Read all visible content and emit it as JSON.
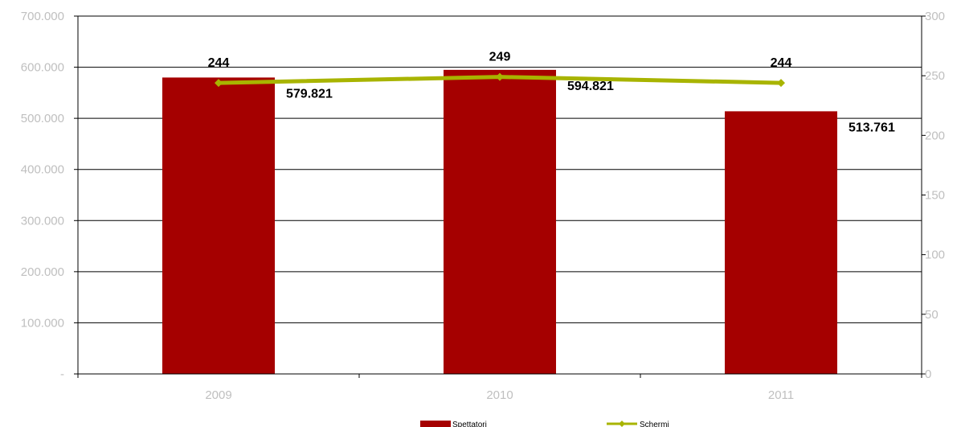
{
  "chart_data": {
    "type": "bar",
    "categories": [
      "2009",
      "2010",
      "2011"
    ],
    "series": [
      {
        "name": "Spettatori",
        "kind": "bar",
        "axis": "left",
        "color": "#a50000",
        "values": [
          579821,
          594821,
          513761
        ],
        "labels": [
          "579.821",
          "594.821",
          "513.761"
        ]
      },
      {
        "name": "Schermi",
        "kind": "line",
        "axis": "right",
        "color": "#a8b400",
        "values": [
          244,
          249,
          244
        ],
        "labels": [
          "244",
          "249",
          "244"
        ]
      }
    ],
    "y_left": {
      "min": 0,
      "max": 700000,
      "ticks": [
        "-",
        "100.000",
        "200.000",
        "300.000",
        "400.000",
        "500.000",
        "600.000",
        "700.000"
      ]
    },
    "y_right": {
      "min": 0,
      "max": 300,
      "ticks": [
        "0",
        "50",
        "100",
        "150",
        "200",
        "250",
        "300"
      ]
    },
    "grid": true,
    "legend": "bottom"
  }
}
